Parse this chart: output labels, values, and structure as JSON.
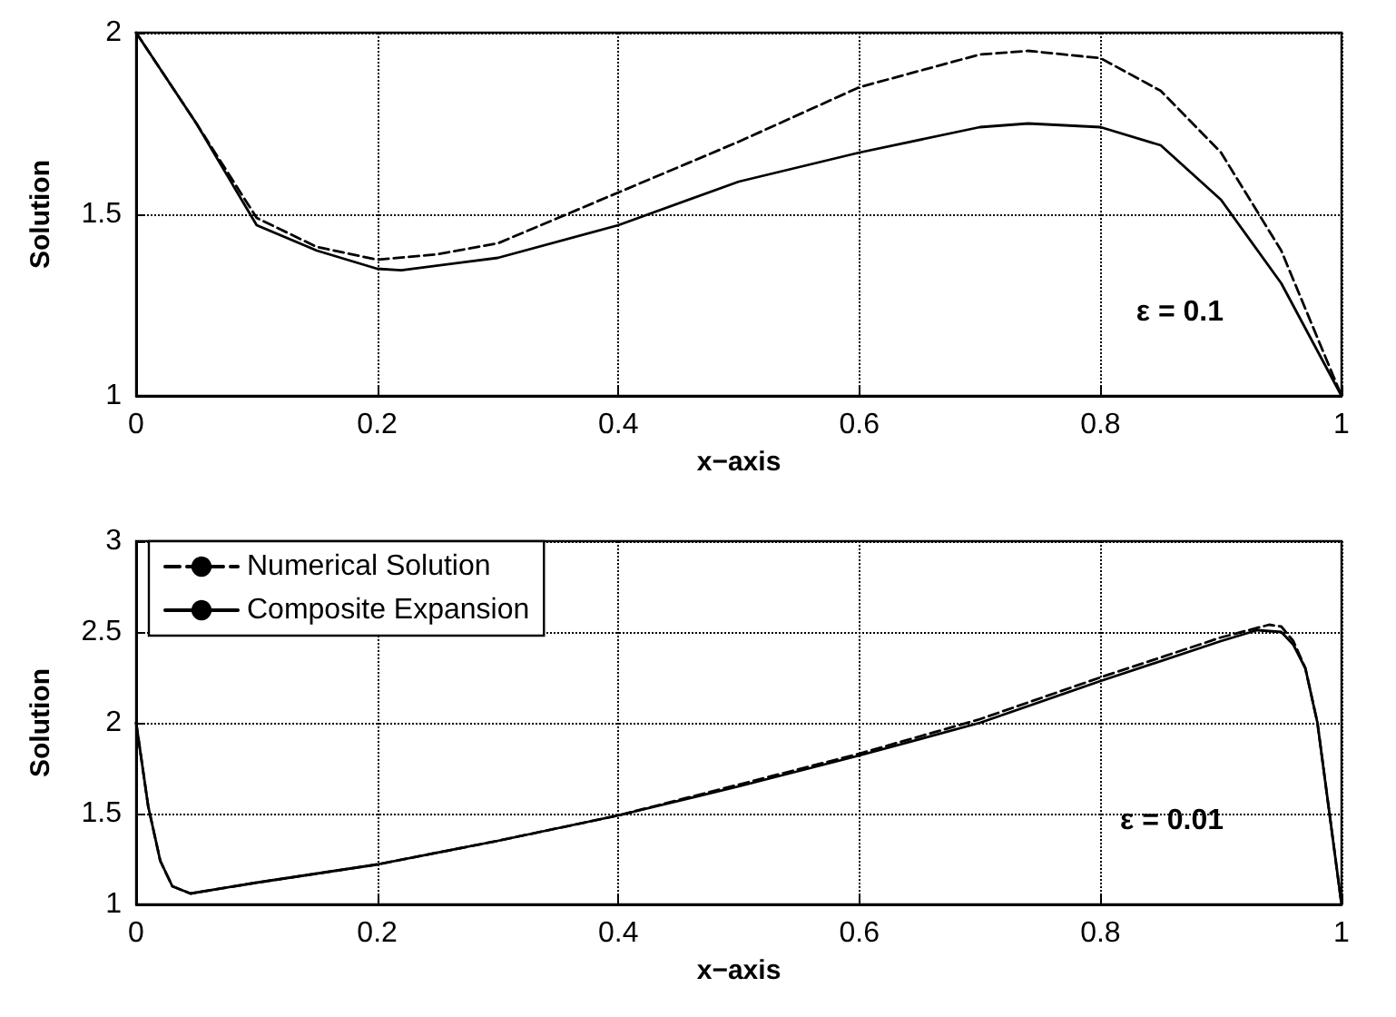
{
  "chart_data": [
    {
      "type": "line",
      "xlabel": "x−axis",
      "ylabel": "Solution",
      "annotations": [
        "ε = 0.1"
      ],
      "xlim": [
        0,
        1
      ],
      "xticks": [
        0,
        0.2,
        0.4,
        0.6,
        0.8,
        1
      ],
      "ylim": [
        1,
        2
      ],
      "yticks": [
        1,
        1.5,
        2
      ],
      "grid": true,
      "legend": false,
      "series": [
        {
          "color": "#000000",
          "line_style": "dashed",
          "x": [
            0,
            0.05,
            0.1,
            0.15,
            0.2,
            0.25,
            0.3,
            0.35,
            0.4,
            0.5,
            0.6,
            0.7,
            0.74,
            0.8,
            0.85,
            0.9,
            0.95,
            1
          ],
          "values": [
            2,
            1.75,
            1.49,
            1.41,
            1.375,
            1.39,
            1.42,
            1.49,
            1.56,
            1.7,
            1.85,
            1.94,
            1.95,
            1.93,
            1.84,
            1.67,
            1.4,
            1
          ]
        },
        {
          "color": "#000000",
          "line_style": "solid",
          "x": [
            0,
            0.05,
            0.1,
            0.15,
            0.2,
            0.22,
            0.3,
            0.4,
            0.5,
            0.6,
            0.7,
            0.74,
            0.8,
            0.85,
            0.9,
            0.95,
            1
          ],
          "values": [
            2,
            1.75,
            1.47,
            1.4,
            1.35,
            1.346,
            1.38,
            1.47,
            1.59,
            1.67,
            1.74,
            1.75,
            1.74,
            1.69,
            1.54,
            1.31,
            1
          ]
        }
      ]
    },
    {
      "type": "line",
      "xlabel": "x−axis",
      "ylabel": "Solution",
      "annotations": [
        "ε = 0.01"
      ],
      "xlim": [
        0,
        1
      ],
      "xticks": [
        0,
        0.2,
        0.4,
        0.6,
        0.8,
        1
      ],
      "ylim": [
        1,
        3
      ],
      "yticks": [
        1,
        1.5,
        2,
        2.5,
        3
      ],
      "grid": true,
      "legend": "top left",
      "series": [
        {
          "name": "Numerical Solution",
          "color": "#000000",
          "line_style": "dashed",
          "x": [
            0,
            0.01,
            0.02,
            0.03,
            0.045,
            0.1,
            0.2,
            0.3,
            0.4,
            0.5,
            0.6,
            0.7,
            0.8,
            0.9,
            0.94,
            0.95,
            0.96,
            0.97,
            0.98,
            0.99,
            1
          ],
          "values": [
            2,
            1.54,
            1.24,
            1.1,
            1.06,
            1.12,
            1.22,
            1.35,
            1.49,
            1.66,
            1.83,
            2.02,
            2.25,
            2.47,
            2.54,
            2.53,
            2.45,
            2.3,
            2,
            1.5,
            1
          ]
        },
        {
          "name": "Composite Expansion",
          "color": "#000000",
          "line_style": "solid",
          "x": [
            0,
            0.01,
            0.02,
            0.03,
            0.045,
            0.1,
            0.2,
            0.3,
            0.4,
            0.5,
            0.6,
            0.7,
            0.8,
            0.9,
            0.93,
            0.95,
            0.96,
            0.97,
            0.98,
            0.99,
            1
          ],
          "values": [
            2,
            1.54,
            1.24,
            1.1,
            1.06,
            1.12,
            1.22,
            1.35,
            1.49,
            1.65,
            1.82,
            2,
            2.23,
            2.45,
            2.51,
            2.5,
            2.43,
            2.3,
            2,
            1.5,
            1
          ]
        }
      ]
    }
  ]
}
